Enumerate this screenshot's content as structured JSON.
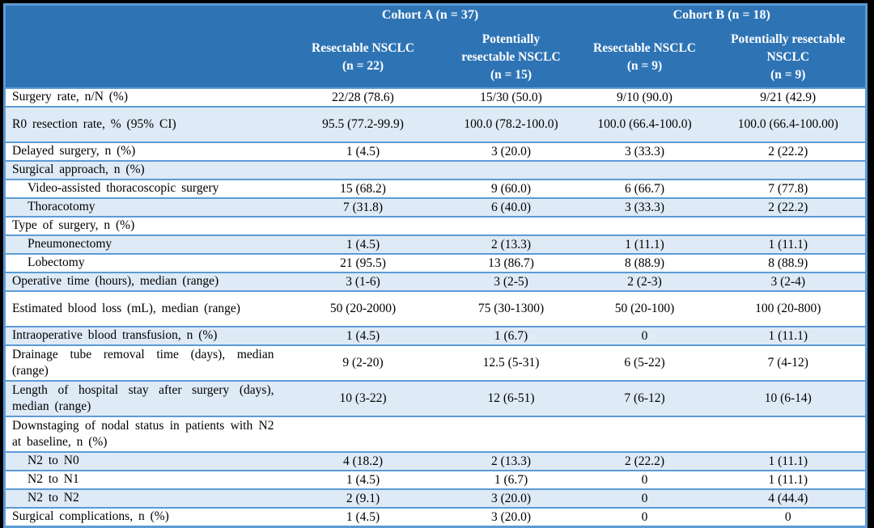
{
  "colors": {
    "header_bg": "#2E74B5",
    "border": "#5B9BD5",
    "band_bg": "#DEEAF6",
    "frame_bg": "#000000",
    "header_text": "#FFFFFF",
    "body_text": "#000000"
  },
  "table": {
    "cohorts": [
      {
        "label": "Cohort A (n = 37)"
      },
      {
        "label": "Cohort B (n = 18)"
      }
    ],
    "subcolumns": [
      {
        "label": "Resectable NSCLC\n(n = 22)"
      },
      {
        "label": "Potentially\nresectable NSCLC\n(n = 15)"
      },
      {
        "label": "Resectable NSCLC\n(n = 9)"
      },
      {
        "label": "Potentially resectable\nNSCLC\n(n = 9)"
      }
    ],
    "rows": [
      {
        "label": "Surgery rate, n/N (%)",
        "indent": false,
        "tall": false,
        "values": [
          "22/28 (78.6)",
          "15/30 (50.0)",
          "9/10 (90.0)",
          "9/21 (42.9)"
        ]
      },
      {
        "label": "R0 resection rate, % (95% CI)",
        "indent": false,
        "tall": true,
        "values": [
          "95.5 (77.2-99.9)",
          "100.0 (78.2-100.0)",
          "100.0 (66.4-100.0)",
          "100.0 (66.4-100.00)"
        ]
      },
      {
        "label": "Delayed surgery, n (%)",
        "indent": false,
        "tall": false,
        "values": [
          "1 (4.5)",
          "3 (20.0)",
          "3 (33.3)",
          "2 (22.2)"
        ]
      },
      {
        "label": "Surgical approach, n (%)",
        "indent": false,
        "tall": false,
        "values": [
          "",
          "",
          "",
          ""
        ]
      },
      {
        "label": "Video-assisted thoracoscopic surgery",
        "indent": true,
        "tall": false,
        "values": [
          "15 (68.2)",
          "9 (60.0)",
          "6 (66.7)",
          "7 (77.8)"
        ]
      },
      {
        "label": "Thoracotomy",
        "indent": true,
        "tall": false,
        "values": [
          "7 (31.8)",
          "6 (40.0)",
          "3 (33.3)",
          "2 (22.2)"
        ]
      },
      {
        "label": "Type of surgery, n (%)",
        "indent": false,
        "tall": false,
        "values": [
          "",
          "",
          "",
          ""
        ]
      },
      {
        "label": "Pneumonectomy",
        "indent": true,
        "tall": false,
        "values": [
          "1 (4.5)",
          "2 (13.3)",
          "1 (11.1)",
          "1 (11.1)"
        ]
      },
      {
        "label": "Lobectomy",
        "indent": true,
        "tall": false,
        "values": [
          "21 (95.5)",
          "13 (86.7)",
          "8 (88.9)",
          "8 (88.9)"
        ]
      },
      {
        "label": "Operative time (hours), median (range)",
        "indent": false,
        "tall": false,
        "values": [
          "3 (1-6)",
          "3 (2-5)",
          "2 (2-3)",
          "3 (2-4)"
        ]
      },
      {
        "label": "Estimated blood loss (mL), median (range)",
        "indent": false,
        "tall": true,
        "values": [
          "50 (20-2000)",
          "75 (30-1300)",
          "50 (20-100)",
          "100 (20-800)"
        ]
      },
      {
        "label": "Intraoperative blood transfusion, n (%)",
        "indent": false,
        "tall": false,
        "values": [
          "1 (4.5)",
          "1 (6.7)",
          "0",
          "1 (11.1)"
        ]
      },
      {
        "label": "Drainage tube removal time (days), median (range)",
        "indent": false,
        "tall": true,
        "values": [
          "9 (2-20)",
          "12.5 (5-31)",
          "6 (5-22)",
          "7 (4-12)"
        ]
      },
      {
        "label": "Length of hospital stay after surgery (days), median (range)",
        "indent": false,
        "tall": true,
        "values": [
          "10 (3-22)",
          "12 (6-51)",
          "7 (6-12)",
          "10 (6-14)"
        ]
      },
      {
        "label": "Downstaging of nodal status in patients with N2 at baseline, n (%)",
        "indent": false,
        "tall": true,
        "values": [
          "",
          "",
          "",
          ""
        ]
      },
      {
        "label": "N2 to N0",
        "indent": true,
        "tall": false,
        "values": [
          "4 (18.2)",
          "2 (13.3)",
          "2 (22.2)",
          "1 (11.1)"
        ]
      },
      {
        "label": "N2 to N1",
        "indent": true,
        "tall": false,
        "values": [
          "1 (4.5)",
          "1 (6.7)",
          "0",
          "1 (11.1)"
        ]
      },
      {
        "label": "N2 to N2",
        "indent": true,
        "tall": false,
        "values": [
          "2 (9.1)",
          "3 (20.0)",
          "0",
          "4 (44.4)"
        ]
      },
      {
        "label": "Surgical complications, n (%)",
        "indent": false,
        "tall": false,
        "values": [
          "1 (4.5)",
          "3 (20.0)",
          "0",
          "0"
        ]
      }
    ]
  }
}
